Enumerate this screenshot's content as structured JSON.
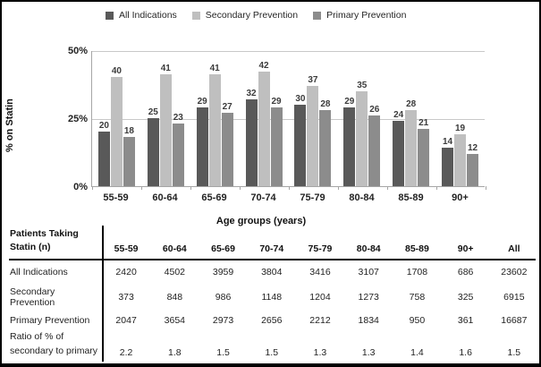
{
  "chart_data": {
    "type": "bar",
    "title": "",
    "categories": [
      "55-59",
      "60-64",
      "65-69",
      "70-74",
      "75-79",
      "80-84",
      "85-89",
      "90+"
    ],
    "series": [
      {
        "name": "All Indications",
        "color": "#595959",
        "values": [
          20,
          25,
          29,
          32,
          30,
          29,
          24,
          14
        ]
      },
      {
        "name": "Secondary Prevention",
        "color": "#bfbfbf",
        "values": [
          40,
          41,
          41,
          42,
          37,
          35,
          28,
          19
        ]
      },
      {
        "name": "Primary Prevention",
        "color": "#8c8c8c",
        "values": [
          18,
          23,
          27,
          29,
          28,
          26,
          21,
          12
        ]
      }
    ],
    "xlabel": "Age groups (years)",
    "ylabel": "% on Statin",
    "ylim": [
      0,
      50
    ],
    "ytick_labels_top_to_bottom": [
      "50%",
      "25%",
      "0%"
    ],
    "grid": true,
    "legend_position": "top",
    "data_labels": "outside-end"
  },
  "table": {
    "corner_header": [
      "Patients Taking",
      "Statin (n)"
    ],
    "columns": [
      "55-59",
      "60-64",
      "65-69",
      "70-74",
      "75-79",
      "80-84",
      "85-89",
      "90+",
      "All"
    ],
    "rows": [
      {
        "label": [
          "All Indications"
        ],
        "values": [
          "2420",
          "4502",
          "3959",
          "3804",
          "3416",
          "3107",
          "1708",
          "686",
          "23602"
        ]
      },
      {
        "label": [
          "Secondary Prevention"
        ],
        "values": [
          "373",
          "848",
          "986",
          "1148",
          "1204",
          "1273",
          "758",
          "325",
          "6915"
        ]
      },
      {
        "label": [
          "Primary Prevention"
        ],
        "values": [
          "2047",
          "3654",
          "2973",
          "2656",
          "2212",
          "1834",
          "950",
          "361",
          "16687"
        ]
      },
      {
        "label": [
          "Ratio of % of",
          "secondary to primary"
        ],
        "values": [
          "2.2",
          "1.8",
          "1.5",
          "1.5",
          "1.3",
          "1.3",
          "1.4",
          "1.6",
          "1.5"
        ]
      }
    ]
  },
  "colors": {
    "series_dark": "#595959",
    "series_light": "#bfbfbf",
    "series_medium": "#8c8c8c",
    "gridline": "#c9c9c9",
    "axis_line": "#a6a6a6",
    "border": "#000000"
  }
}
